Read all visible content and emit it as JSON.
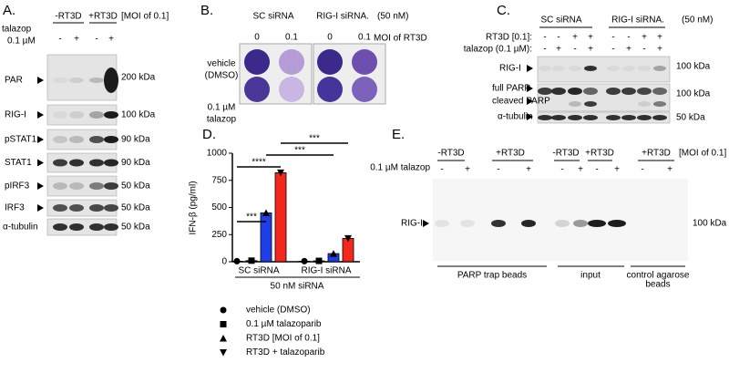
{
  "panelA": {
    "letter": "A.",
    "col_headers": [
      "-RT3D",
      "+RT3D",
      "[MOI of 0.1]"
    ],
    "talazop": "talazop",
    "conc": "0.1 µM",
    "signs": [
      "-",
      "+",
      "-",
      "+"
    ],
    "rows": [
      {
        "label": "PAR",
        "kda": "200 kDa"
      },
      {
        "label": "RIG-I",
        "kda": "100 kDa"
      },
      {
        "label": "pSTAT1",
        "kda": "90 kDa"
      },
      {
        "label": "STAT1",
        "kda": "90 kDa"
      },
      {
        "label": "pIRF3",
        "kda": "50 kDa"
      },
      {
        "label": "IRF3",
        "kda": "50 kDa"
      },
      {
        "label": "α-tubulin",
        "kda": "50 kDa"
      }
    ]
  },
  "panelB": {
    "letter": "B.",
    "groups": [
      "SC siRNA",
      "RIG-I siRNA."
    ],
    "conc": "(50 nM)",
    "mois": [
      "0",
      "0.1",
      "0",
      "0.1"
    ],
    "moi_label": "MOI of RT3D",
    "rows": [
      [
        "vehicle",
        "(DMSO)"
      ],
      [
        "0.1 µM",
        "talazop"
      ]
    ]
  },
  "panelC": {
    "letter": "C.",
    "groups": [
      "SC siRNA",
      "RIG-I siRNA."
    ],
    "conc": "(50 nM)",
    "rt3d_label": "RT3D [0.1]:",
    "talazop_label": "talazop (0.1 µM):",
    "rt3d_signs": [
      "-",
      "-",
      "+",
      "+",
      "-",
      "-",
      "+",
      "+"
    ],
    "talazop_signs": [
      "-",
      "+",
      "-",
      "+",
      "-",
      "+",
      "-",
      "+"
    ],
    "rows": [
      {
        "labels": [
          "RIG-I"
        ],
        "kda": "100 kDa"
      },
      {
        "labels": [
          "full PARP",
          "cleaved PARP"
        ],
        "kda": "100 kDa"
      },
      {
        "labels": [
          "α-tubulin"
        ],
        "kda": "50 kDa"
      }
    ]
  },
  "panelE": {
    "letter": "E.",
    "groups": [
      "-RT3D",
      "+RT3D",
      "-RT3D",
      "+RT3D",
      "+RT3D"
    ],
    "moi": "[MOI of 0.1]",
    "talazop_label": "0.1 µM talazop",
    "signs": [
      "-",
      "+",
      "-",
      "+",
      "-",
      "+",
      "-",
      "+",
      "-",
      "+"
    ],
    "row_label": "RIG-I",
    "kda": "100 kDa",
    "footers": [
      [
        "PARP trap beads"
      ],
      [
        "input"
      ],
      [
        "control agarose",
        "beads"
      ]
    ]
  },
  "chart_data": {
    "type": "bar",
    "letter": "D.",
    "y_label": "IFN-β (pg/ml)",
    "x_label": "50 nM siRNA",
    "categories": [
      "SC siRNA",
      "RIG-I siRNA"
    ],
    "ylim": [
      0,
      1000
    ],
    "yticks": [
      0,
      250,
      500,
      750,
      1000
    ],
    "series": [
      {
        "name": "vehicle (DMSO)",
        "color": "#000000",
        "marker": "circle",
        "values": [
          5,
          5
        ]
      },
      {
        "name": "0.1 µM talazoparib",
        "color": "#000000",
        "marker": "square",
        "values": [
          10,
          8
        ]
      },
      {
        "name": "RT3D [MOI of 0.1]",
        "color": "#1f3fe6",
        "marker": "triangle-up",
        "values": [
          450,
          75
        ]
      },
      {
        "name": "RT3D + talazoparib",
        "color": "#f2281c",
        "marker": "triangle-down",
        "values": [
          820,
          215
        ]
      }
    ],
    "significance": [
      "***",
      "****",
      "***",
      "***"
    ]
  }
}
